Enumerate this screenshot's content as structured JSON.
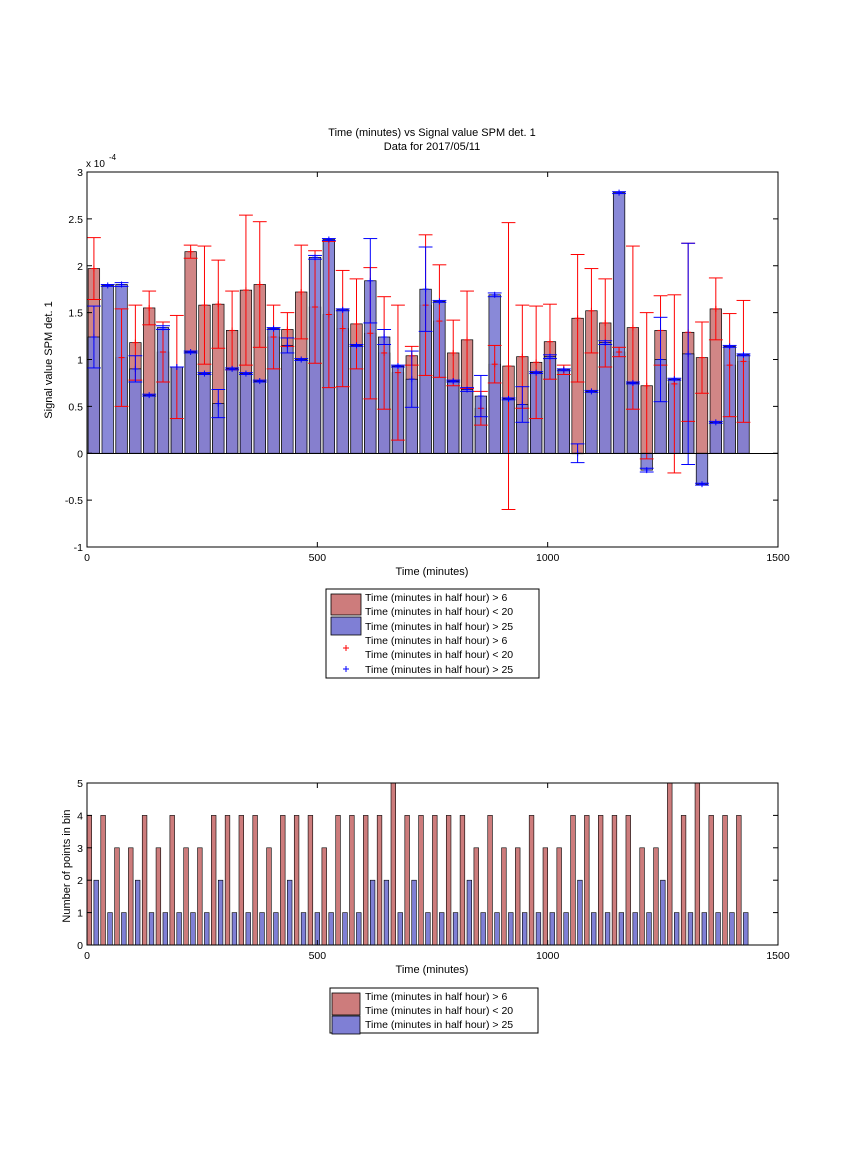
{
  "colors": {
    "red_fill": "#cd7c7c",
    "red_err": "#ff0000",
    "blue_fill": "#7f7fd5",
    "blue_err": "#0000ff",
    "axis": "#000000",
    "background": "#ffffff"
  },
  "chart_data": [
    {
      "type": "bar",
      "title": "Time (minutes) vs Signal value SPM det. 1",
      "subtitle": "Data for 2017/05/11",
      "xlabel": "Time (minutes)",
      "ylabel": "Signal value SPM det. 1",
      "y_exponent_label": "x 10",
      "y_exponent_power": "-4",
      "xlim": [
        0,
        1500
      ],
      "ylim": [
        -1,
        3
      ],
      "x_ticks": [
        "0",
        "500",
        "1000",
        "1500"
      ],
      "y_ticks": [
        "-1",
        "-0.5",
        "0",
        "0.5",
        "1",
        "1.5",
        "2",
        "2.5",
        "3"
      ],
      "grid": false,
      "legend_position": "below",
      "legend": [
        {
          "line1": "Time (minutes in half hour) > 6",
          "line2": "Time (minutes in half hour) < 20",
          "kind": "patch",
          "color": "red"
        },
        {
          "line1": "Time (minutes in half hour) > 25",
          "line2": "",
          "kind": "patch",
          "color": "blue"
        },
        {
          "line1": "Time (minutes in half hour) > 6",
          "line2": "Time (minutes in half hour) < 20",
          "kind": "marker",
          "color": "red"
        },
        {
          "line1": "Time (minutes in half hour) > 25",
          "line2": "",
          "kind": "marker",
          "color": "blue"
        }
      ],
      "series": [
        {
          "color": "red",
          "x": [
            15,
            75,
            105,
            135,
            165,
            195,
            225,
            255,
            285,
            315,
            345,
            375,
            405,
            435,
            465,
            495,
            525,
            555,
            585,
            615,
            645,
            675,
            705,
            735,
            765,
            795,
            825,
            855,
            885,
            915,
            945,
            975,
            1005,
            1035,
            1065,
            1095,
            1125,
            1155,
            1185,
            1215,
            1245,
            1275,
            1305,
            1335,
            1365,
            1395,
            1425
          ],
          "values": [
            1.97,
            1.02,
            1.18,
            1.55,
            1.08,
            0.92,
            2.15,
            1.58,
            1.59,
            1.31,
            1.74,
            1.8,
            1.24,
            1.32,
            1.72,
            1.56,
            1.48,
            1.33,
            1.38,
            1.28,
            1.07,
            0.86,
            1.04,
            1.58,
            1.41,
            1.07,
            1.21,
            0.48,
            0.95,
            0.93,
            1.03,
            0.97,
            1.19,
            0.89,
            1.44,
            1.52,
            1.39,
            1.08,
            1.34,
            0.72,
            1.31,
            0.74,
            1.29,
            1.02,
            1.54,
            0.94,
            0.98
          ],
          "err": [
            0.33,
            0.52,
            0.4,
            0.18,
            0.32,
            0.55,
            0.07,
            0.63,
            0.47,
            0.42,
            0.8,
            0.67,
            0.34,
            0.18,
            0.5,
            0.6,
            0.78,
            0.62,
            0.48,
            0.7,
            0.6,
            0.72,
            0.1,
            0.75,
            0.6,
            0.35,
            0.52,
            0.18,
            0.2,
            1.53,
            0.55,
            0.6,
            0.4,
            0.05,
            0.68,
            0.45,
            0.47,
            0.05,
            0.87,
            0.78,
            0.37,
            0.95,
            0.95,
            0.38,
            0.33,
            0.55,
            0.65
          ]
        },
        {
          "color": "blue",
          "x": [
            15,
            45,
            75,
            105,
            135,
            165,
            195,
            225,
            255,
            285,
            315,
            345,
            375,
            405,
            435,
            465,
            495,
            525,
            555,
            585,
            615,
            645,
            675,
            705,
            735,
            765,
            795,
            825,
            855,
            885,
            915,
            945,
            975,
            1005,
            1035,
            1065,
            1095,
            1125,
            1155,
            1185,
            1215,
            1245,
            1275,
            1305,
            1335,
            1365,
            1395,
            1425
          ],
          "values": [
            1.24,
            1.79,
            1.8,
            0.9,
            0.62,
            1.34,
            0.92,
            1.08,
            0.85,
            0.53,
            0.9,
            0.85,
            0.77,
            1.33,
            1.15,
            1.0,
            2.09,
            2.28,
            1.53,
            1.15,
            1.84,
            1.24,
            0.93,
            0.79,
            1.75,
            1.62,
            0.77,
            0.68,
            0.61,
            1.69,
            0.58,
            0.52,
            0.86,
            1.03,
            0.89,
            0.0,
            0.66,
            1.18,
            2.78,
            0.75,
            -0.18,
            1.0,
            0.79,
            1.06,
            -0.33,
            0.33,
            1.14,
            1.05
          ],
          "err": [
            0.33,
            0.01,
            0.02,
            0.14,
            0.01,
            0.02,
            0.0,
            0.01,
            0.01,
            0.15,
            0.01,
            0.01,
            0.01,
            0.01,
            0.08,
            0.01,
            0.02,
            0.01,
            0.01,
            0.01,
            0.45,
            0.08,
            0.01,
            0.3,
            0.45,
            0.01,
            0.01,
            0.02,
            0.22,
            0.02,
            0.01,
            0.19,
            0.01,
            0.02,
            0.01,
            0.1,
            0.01,
            0.02,
            0.01,
            0.01,
            0.02,
            0.45,
            0.01,
            1.18,
            0.01,
            0.01,
            0.01,
            0.01
          ]
        }
      ]
    },
    {
      "type": "bar",
      "title": "",
      "xlabel": "Time (minutes)",
      "ylabel": "Number of points in bin",
      "xlim": [
        0,
        1500
      ],
      "ylim": [
        0,
        5
      ],
      "x_ticks": [
        "0",
        "500",
        "1000",
        "1500"
      ],
      "y_ticks": [
        "0",
        "1",
        "2",
        "3",
        "4",
        "5"
      ],
      "grid": false,
      "legend_position": "below",
      "legend": [
        {
          "line1": "Time (minutes in half hour) > 6",
          "line2": "Time (minutes in half hour) < 20",
          "kind": "patch",
          "color": "red"
        },
        {
          "line1": "Time (minutes in half hour) > 25",
          "line2": "",
          "kind": "patch",
          "color": "blue"
        }
      ],
      "series": [
        {
          "color": "red",
          "x": [
            5,
            35,
            65,
            95,
            125,
            155,
            185,
            215,
            245,
            275,
            305,
            335,
            365,
            395,
            425,
            455,
            485,
            515,
            545,
            575,
            605,
            635,
            665,
            695,
            725,
            755,
            785,
            815,
            845,
            875,
            905,
            935,
            965,
            995,
            1025,
            1055,
            1085,
            1115,
            1145,
            1175,
            1205,
            1235,
            1265,
            1295,
            1325,
            1355,
            1385,
            1415
          ],
          "values": [
            4,
            4,
            3,
            3,
            4,
            3,
            4,
            3,
            3,
            4,
            4,
            4,
            4,
            3,
            4,
            4,
            4,
            3,
            4,
            4,
            4,
            4,
            5,
            4,
            4,
            4,
            4,
            4,
            3,
            4,
            3,
            3,
            4,
            3,
            3,
            4,
            4,
            4,
            4,
            4,
            3,
            3,
            5,
            4,
            5,
            4,
            4,
            4
          ]
        },
        {
          "color": "blue",
          "x": [
            20,
            50,
            80,
            110,
            140,
            170,
            200,
            230,
            260,
            290,
            320,
            350,
            380,
            410,
            440,
            470,
            500,
            530,
            560,
            590,
            620,
            650,
            680,
            710,
            740,
            770,
            800,
            830,
            860,
            890,
            920,
            950,
            980,
            1010,
            1040,
            1070,
            1100,
            1130,
            1160,
            1190,
            1220,
            1250,
            1280,
            1310,
            1340,
            1370,
            1400,
            1430
          ],
          "values": [
            2,
            1,
            1,
            2,
            1,
            1,
            1,
            1,
            1,
            2,
            1,
            1,
            1,
            1,
            2,
            1,
            1,
            1,
            1,
            1,
            2,
            2,
            1,
            2,
            1,
            1,
            1,
            2,
            1,
            1,
            1,
            1,
            1,
            1,
            1,
            2,
            1,
            1,
            1,
            1,
            1,
            2,
            1,
            1,
            1,
            1,
            1,
            1
          ]
        }
      ]
    }
  ]
}
